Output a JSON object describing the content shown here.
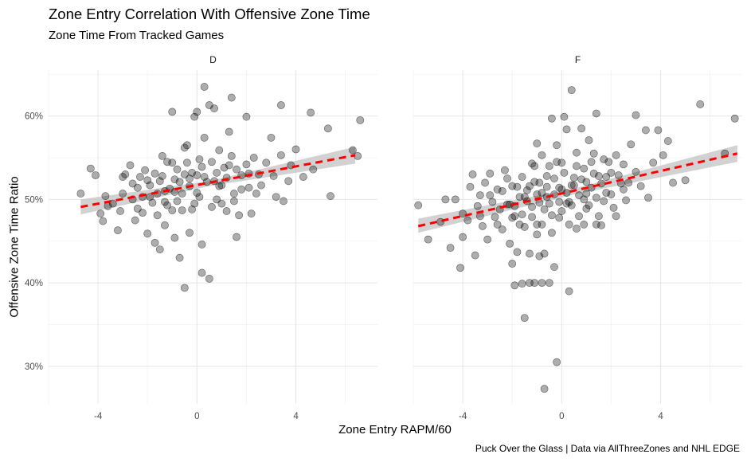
{
  "chart_data": {
    "type": "scatter",
    "title": "Zone Entry Correlation With Offensive Zone Time",
    "subtitle": "Zone Time From Tracked Games",
    "xlabel": "Zone Entry RAPM/60",
    "ylabel": "Offensive Zone Time Ratio",
    "caption": "Puck Over the Glass   |   Data via AllThreeZones and NHL EDGE",
    "xlim": [
      -6.0,
      7.3
    ],
    "ylim": [
      0.255,
      0.655
    ],
    "x_ticks": [
      -4,
      0,
      4
    ],
    "x_tick_labels": [
      "-4",
      "0",
      "4"
    ],
    "y_ticks": [
      0.3,
      0.4,
      0.5,
      0.6
    ],
    "y_tick_labels": [
      "30%",
      "40%",
      "50%",
      "60%"
    ],
    "grid": true,
    "point_color": "#000000",
    "point_opacity": 0.32,
    "trend_color": "#ff0000",
    "band_color": "#bfbfbf",
    "panels": [
      {
        "facet": "D",
        "trend": {
          "x": [
            -4.7,
            6.4
          ],
          "y": [
            0.491,
            0.553
          ]
        },
        "band": {
          "x": [
            -4.7,
            0.5,
            6.4
          ],
          "y_low": [
            0.482,
            0.516,
            0.543
          ],
          "y_high": [
            0.5,
            0.522,
            0.563
          ]
        },
        "points": [
          [
            -4.7,
            0.507
          ],
          [
            -4.3,
            0.537
          ],
          [
            -4.1,
            0.529
          ],
          [
            -3.9,
            0.483
          ],
          [
            -3.8,
            0.474
          ],
          [
            -3.7,
            0.504
          ],
          [
            -3.6,
            0.492
          ],
          [
            -3.4,
            0.495
          ],
          [
            -3.2,
            0.463
          ],
          [
            -3.1,
            0.486
          ],
          [
            -3.0,
            0.527
          ],
          [
            -3.0,
            0.507
          ],
          [
            -2.9,
            0.53
          ],
          [
            -2.7,
            0.541
          ],
          [
            -2.6,
            0.5
          ],
          [
            -2.5,
            0.475
          ],
          [
            -2.4,
            0.489
          ],
          [
            -2.4,
            0.514
          ],
          [
            -2.3,
            0.527
          ],
          [
            -2.2,
            0.503
          ],
          [
            -2.1,
            0.535
          ],
          [
            -2.0,
            0.523
          ],
          [
            -2.0,
            0.459
          ],
          [
            -1.9,
            0.517
          ],
          [
            -1.8,
            0.496
          ],
          [
            -1.7,
            0.448
          ],
          [
            -1.6,
            0.507
          ],
          [
            -1.6,
            0.481
          ],
          [
            -1.5,
            0.44
          ],
          [
            -1.4,
            0.552
          ],
          [
            -1.4,
            0.528
          ],
          [
            -1.3,
            0.497
          ],
          [
            -1.3,
            0.469
          ],
          [
            -1.2,
            0.545
          ],
          [
            -1.1,
            0.513
          ],
          [
            -1.0,
            0.605
          ],
          [
            -1.0,
            0.487
          ],
          [
            -0.9,
            0.454
          ],
          [
            -0.9,
            0.524
          ],
          [
            -0.8,
            0.536
          ],
          [
            -0.8,
            0.498
          ],
          [
            -0.7,
            0.43
          ],
          [
            -0.7,
            0.521
          ],
          [
            -0.6,
            0.507
          ],
          [
            -0.5,
            0.394
          ],
          [
            -0.5,
            0.562
          ],
          [
            -0.4,
            0.565
          ],
          [
            -0.4,
            0.544
          ],
          [
            -0.3,
            0.46
          ],
          [
            -0.3,
            0.516
          ],
          [
            -0.2,
            0.532
          ],
          [
            -0.1,
            0.599
          ],
          [
            -0.1,
            0.495
          ],
          [
            0.0,
            0.605
          ],
          [
            0.0,
            0.529
          ],
          [
            0.1,
            0.548
          ],
          [
            0.1,
            0.503
          ],
          [
            0.2,
            0.446
          ],
          [
            0.2,
            0.412
          ],
          [
            0.3,
            0.635
          ],
          [
            0.3,
            0.574
          ],
          [
            0.4,
            0.521
          ],
          [
            0.5,
            0.405
          ],
          [
            0.5,
            0.613
          ],
          [
            0.6,
            0.545
          ],
          [
            0.7,
            0.609
          ],
          [
            0.8,
            0.5
          ],
          [
            0.8,
            0.532
          ],
          [
            0.9,
            0.559
          ],
          [
            1.0,
            0.517
          ],
          [
            1.1,
            0.538
          ],
          [
            1.2,
            0.486
          ],
          [
            1.3,
            0.581
          ],
          [
            1.4,
            0.622
          ],
          [
            1.4,
            0.552
          ],
          [
            1.5,
            0.507
          ],
          [
            1.6,
            0.455
          ],
          [
            1.6,
            0.536
          ],
          [
            1.7,
            0.481
          ],
          [
            1.8,
            0.529
          ],
          [
            2.0,
            0.599
          ],
          [
            2.0,
            0.542
          ],
          [
            2.1,
            0.514
          ],
          [
            2.2,
            0.483
          ],
          [
            2.3,
            0.55
          ],
          [
            2.5,
            0.53
          ],
          [
            2.6,
            0.517
          ],
          [
            2.8,
            0.544
          ],
          [
            3.0,
            0.574
          ],
          [
            3.1,
            0.528
          ],
          [
            3.2,
            0.503
          ],
          [
            3.4,
            0.613
          ],
          [
            3.4,
            0.553
          ],
          [
            3.5,
            0.498
          ],
          [
            3.7,
            0.522
          ],
          [
            3.8,
            0.541
          ],
          [
            4.0,
            0.56
          ],
          [
            4.3,
            0.527
          ],
          [
            4.6,
            0.604
          ],
          [
            4.7,
            0.536
          ],
          [
            5.3,
            0.585
          ],
          [
            5.4,
            0.504
          ],
          [
            6.3,
            0.559
          ],
          [
            6.5,
            0.552
          ],
          [
            6.6,
            0.595
          ],
          [
            -2.2,
            0.484
          ],
          [
            -1.9,
            0.503
          ],
          [
            -1.5,
            0.522
          ],
          [
            -1.2,
            0.493
          ],
          [
            -0.9,
            0.509
          ],
          [
            -0.6,
            0.487
          ],
          [
            -0.3,
            0.525
          ],
          [
            0.0,
            0.508
          ],
          [
            0.3,
            0.527
          ],
          [
            0.6,
            0.491
          ],
          [
            0.9,
            0.516
          ],
          [
            1.2,
            0.526
          ],
          [
            1.5,
            0.498
          ],
          [
            1.8,
            0.512
          ],
          [
            2.1,
            0.531
          ],
          [
            2.4,
            0.507
          ],
          [
            -1.7,
            0.531
          ],
          [
            -1.0,
            0.544
          ],
          [
            -0.5,
            0.53
          ],
          [
            0.2,
            0.539
          ],
          [
            0.7,
            0.522
          ],
          [
            1.3,
            0.541
          ],
          [
            -2.6,
            0.519
          ],
          [
            -1.3,
            0.51
          ],
          [
            -0.2,
            0.488
          ],
          [
            1.0,
            0.495
          ]
        ]
      },
      {
        "facet": "F",
        "trend": {
          "x": [
            -5.8,
            7.1
          ],
          "y": [
            0.468,
            0.555
          ]
        },
        "band": {
          "x": [
            -5.8,
            0.5,
            7.1
          ],
          "y_low": [
            0.46,
            0.506,
            0.545
          ],
          "y_high": [
            0.477,
            0.513,
            0.565
          ]
        },
        "points": [
          [
            -5.8,
            0.493
          ],
          [
            -5.4,
            0.452
          ],
          [
            -4.9,
            0.473
          ],
          [
            -4.7,
            0.5
          ],
          [
            -4.5,
            0.442
          ],
          [
            -4.3,
            0.5
          ],
          [
            -4.1,
            0.418
          ],
          [
            -4.0,
            0.483
          ],
          [
            -4.0,
            0.455
          ],
          [
            -3.8,
            0.475
          ],
          [
            -3.7,
            0.515
          ],
          [
            -3.6,
            0.53
          ],
          [
            -3.5,
            0.433
          ],
          [
            -3.4,
            0.492
          ],
          [
            -3.3,
            0.505
          ],
          [
            -3.2,
            0.468
          ],
          [
            -3.1,
            0.52
          ],
          [
            -3.0,
            0.452
          ],
          [
            -2.9,
            0.531
          ],
          [
            -2.8,
            0.497
          ],
          [
            -2.7,
            0.479
          ],
          [
            -2.6,
            0.512
          ],
          [
            -2.5,
            0.488
          ],
          [
            -2.4,
            0.464
          ],
          [
            -2.3,
            0.535
          ],
          [
            -2.2,
            0.494
          ],
          [
            -2.1,
            0.447
          ],
          [
            -2.0,
            0.423
          ],
          [
            -2.0,
            0.516
          ],
          [
            -1.9,
            0.397
          ],
          [
            -1.9,
            0.48
          ],
          [
            -1.8,
            0.437
          ],
          [
            -1.7,
            0.503
          ],
          [
            -1.6,
            0.399
          ],
          [
            -1.6,
            0.527
          ],
          [
            -1.5,
            0.358
          ],
          [
            -1.5,
            0.467
          ],
          [
            -1.4,
            0.511
          ],
          [
            -1.3,
            0.4
          ],
          [
            -1.3,
            0.435
          ],
          [
            -1.2,
            0.491
          ],
          [
            -1.2,
            0.543
          ],
          [
            -1.1,
            0.4
          ],
          [
            -1.1,
            0.521
          ],
          [
            -1.0,
            0.458
          ],
          [
            -1.0,
            0.567
          ],
          [
            -0.9,
            0.432
          ],
          [
            -0.9,
            0.496
          ],
          [
            -0.8,
            0.4
          ],
          [
            -0.8,
            0.553
          ],
          [
            -0.7,
            0.273
          ],
          [
            -0.7,
            0.435
          ],
          [
            -0.6,
            0.515
          ],
          [
            -0.5,
            0.4
          ],
          [
            -0.5,
            0.54
          ],
          [
            -0.4,
            0.597
          ],
          [
            -0.3,
            0.419
          ],
          [
            -0.3,
            0.506
          ],
          [
            -0.2,
            0.305
          ],
          [
            -0.2,
            0.565
          ],
          [
            -0.1,
            0.478
          ],
          [
            0.0,
            0.544
          ],
          [
            0.0,
            0.512
          ],
          [
            0.1,
            0.599
          ],
          [
            0.2,
            0.584
          ],
          [
            0.3,
            0.39
          ],
          [
            0.3,
            0.497
          ],
          [
            0.4,
            0.631
          ],
          [
            0.5,
            0.526
          ],
          [
            0.6,
            0.556
          ],
          [
            0.7,
            0.505
          ],
          [
            0.8,
            0.585
          ],
          [
            0.9,
            0.537
          ],
          [
            1.0,
            0.489
          ],
          [
            1.1,
            0.571
          ],
          [
            1.2,
            0.514
          ],
          [
            1.3,
            0.555
          ],
          [
            1.4,
            0.603
          ],
          [
            1.5,
            0.528
          ],
          [
            1.6,
            0.469
          ],
          [
            1.7,
            0.548
          ],
          [
            1.8,
            0.508
          ],
          [
            2.0,
            0.532
          ],
          [
            2.1,
            0.49
          ],
          [
            2.2,
            0.553
          ],
          [
            2.4,
            0.519
          ],
          [
            2.5,
            0.542
          ],
          [
            2.6,
            0.499
          ],
          [
            2.8,
            0.566
          ],
          [
            3.0,
            0.601
          ],
          [
            3.0,
            0.533
          ],
          [
            3.2,
            0.516
          ],
          [
            3.4,
            0.583
          ],
          [
            3.5,
            0.502
          ],
          [
            3.7,
            0.544
          ],
          [
            3.9,
            0.583
          ],
          [
            4.1,
            0.553
          ],
          [
            4.3,
            0.57
          ],
          [
            4.5,
            0.52
          ],
          [
            5.0,
            0.523
          ],
          [
            5.6,
            0.614
          ],
          [
            6.6,
            0.555
          ],
          [
            7.0,
            0.597
          ],
          [
            -2.4,
            0.51
          ],
          [
            -2.1,
            0.494
          ],
          [
            -1.8,
            0.515
          ],
          [
            -1.6,
            0.482
          ],
          [
            -1.4,
            0.498
          ],
          [
            -1.2,
            0.479
          ],
          [
            -1.0,
            0.506
          ],
          [
            -0.9,
            0.52
          ],
          [
            -0.7,
            0.488
          ],
          [
            -0.6,
            0.503
          ],
          [
            -0.4,
            0.481
          ],
          [
            -0.3,
            0.525
          ],
          [
            -0.1,
            0.497
          ],
          [
            0.0,
            0.486
          ],
          [
            0.1,
            0.532
          ],
          [
            0.2,
            0.508
          ],
          [
            0.4,
            0.493
          ],
          [
            0.5,
            0.517
          ],
          [
            0.7,
            0.48
          ],
          [
            0.8,
            0.524
          ],
          [
            1.0,
            0.507
          ],
          [
            1.1,
            0.493
          ],
          [
            1.3,
            0.531
          ],
          [
            1.4,
            0.502
          ],
          [
            1.6,
            0.519
          ],
          [
            1.8,
            0.527
          ],
          [
            2.0,
            0.506
          ],
          [
            2.3,
            0.529
          ],
          [
            -2.6,
            0.47
          ],
          [
            -2.2,
            0.525
          ],
          [
            -1.7,
            0.47
          ],
          [
            -1.1,
            0.54
          ],
          [
            -0.8,
            0.47
          ],
          [
            -0.5,
            0.495
          ],
          [
            -0.2,
            0.545
          ],
          [
            0.3,
            0.47
          ],
          [
            0.6,
            0.54
          ],
          [
            0.9,
            0.47
          ],
          [
            1.2,
            0.545
          ],
          [
            1.5,
            0.48
          ],
          [
            1.9,
            0.545
          ],
          [
            2.7,
            0.52
          ],
          [
            -3.3,
            0.48
          ],
          [
            -2.9,
            0.505
          ],
          [
            -1.9,
            0.492
          ],
          [
            -1.3,
            0.516
          ],
          [
            -0.6,
            0.528
          ],
          [
            -0.1,
            0.514
          ],
          [
            0.4,
            0.517
          ],
          [
            1.0,
            0.521
          ],
          [
            1.7,
            0.498
          ],
          [
            2.5,
            0.512
          ],
          [
            -0.8,
            0.508
          ],
          [
            -1.5,
            0.503
          ],
          [
            0.2,
            0.495
          ],
          [
            0.9,
            0.5
          ],
          [
            -2.0,
            0.478
          ],
          [
            -0.4,
            0.46
          ],
          [
            0.6,
            0.465
          ],
          [
            1.4,
            0.47
          ],
          [
            -1.0,
            0.47
          ],
          [
            2.2,
            0.48
          ]
        ]
      }
    ]
  }
}
